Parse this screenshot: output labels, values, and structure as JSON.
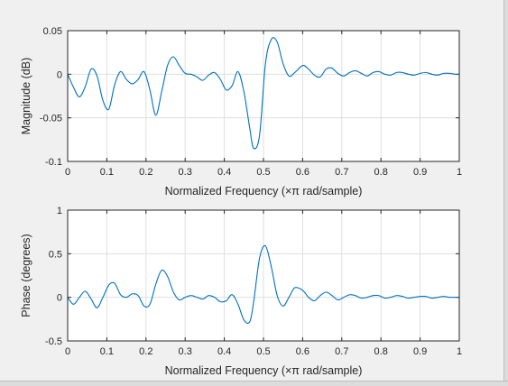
{
  "chart_data": [
    {
      "type": "line",
      "xlabel": "Normalized Frequency  (×π rad/sample)",
      "ylabel": "Magnitude (dB)",
      "xlim": [
        0,
        1
      ],
      "ylim": [
        -0.1,
        0.05
      ],
      "xticks": [
        "0",
        "0.1",
        "0.2",
        "0.3",
        "0.4",
        "0.5",
        "0.6",
        "0.7",
        "0.8",
        "0.9",
        "1"
      ],
      "yticks": [
        "-0.1",
        "-0.05",
        "0",
        "0.05"
      ],
      "grid": true,
      "line_color": "#0072bd",
      "series": [
        {
          "x": [
            0.0,
            0.015,
            0.03,
            0.045,
            0.06,
            0.075,
            0.09,
            0.105,
            0.12,
            0.135,
            0.15,
            0.165,
            0.18,
            0.195,
            0.21,
            0.225,
            0.24,
            0.255,
            0.27,
            0.285,
            0.3,
            0.315,
            0.33,
            0.345,
            0.36,
            0.375,
            0.39,
            0.405,
            0.42,
            0.435,
            0.45,
            0.465,
            0.475,
            0.49,
            0.505,
            0.52,
            0.535,
            0.55,
            0.565,
            0.58,
            0.6,
            0.615,
            0.63,
            0.645,
            0.66,
            0.675,
            0.69,
            0.705,
            0.72,
            0.735,
            0.75,
            0.765,
            0.78,
            0.795,
            0.81,
            0.825,
            0.84,
            0.855,
            0.87,
            0.885,
            0.9,
            0.915,
            0.93,
            0.945,
            0.96,
            0.975,
            0.99,
            1.0
          ],
          "values": [
            0.0,
            -0.015,
            -0.026,
            -0.014,
            0.006,
            -0.002,
            -0.03,
            -0.04,
            -0.012,
            0.003,
            -0.006,
            -0.011,
            -0.006,
            0.003,
            -0.018,
            -0.047,
            -0.02,
            0.01,
            0.02,
            0.01,
            0.001,
            0.0,
            -0.003,
            -0.007,
            -0.001,
            0.002,
            -0.006,
            -0.018,
            -0.013,
            0.003,
            -0.02,
            -0.062,
            -0.085,
            -0.07,
            0.012,
            0.04,
            0.037,
            0.012,
            -0.002,
            0.002,
            0.01,
            0.006,
            -0.001,
            -0.003,
            0.006,
            0.007,
            0.001,
            -0.002,
            0.002,
            0.004,
            0.001,
            -0.002,
            0.002,
            0.003,
            0.0,
            -0.001,
            0.002,
            0.002,
            0.0,
            -0.001,
            0.001,
            0.002,
            0.0,
            -0.001,
            0.001,
            0.001,
            0.0,
            0.0
          ]
        }
      ]
    },
    {
      "type": "line",
      "xlabel": "Normalized Frequency  (×π rad/sample)",
      "ylabel": "Phase (degrees)",
      "xlim": [
        0,
        1
      ],
      "ylim": [
        -0.5,
        1
      ],
      "xticks": [
        "0",
        "0.1",
        "0.2",
        "0.3",
        "0.4",
        "0.5",
        "0.6",
        "0.7",
        "0.8",
        "0.9",
        "1"
      ],
      "yticks": [
        "-0.5",
        "0",
        "0.5",
        "1"
      ],
      "grid": true,
      "line_color": "#0072bd",
      "series": [
        {
          "x": [
            0.0,
            0.015,
            0.03,
            0.045,
            0.06,
            0.075,
            0.09,
            0.105,
            0.12,
            0.135,
            0.15,
            0.165,
            0.18,
            0.195,
            0.21,
            0.225,
            0.24,
            0.255,
            0.27,
            0.285,
            0.3,
            0.315,
            0.33,
            0.345,
            0.36,
            0.375,
            0.39,
            0.405,
            0.42,
            0.435,
            0.45,
            0.465,
            0.475,
            0.49,
            0.505,
            0.52,
            0.535,
            0.55,
            0.565,
            0.58,
            0.6,
            0.615,
            0.63,
            0.645,
            0.66,
            0.675,
            0.69,
            0.705,
            0.72,
            0.735,
            0.75,
            0.765,
            0.78,
            0.795,
            0.81,
            0.825,
            0.84,
            0.855,
            0.87,
            0.885,
            0.9,
            0.915,
            0.93,
            0.945,
            0.96,
            0.975,
            0.99,
            1.0
          ],
          "values": [
            0.0,
            -0.08,
            0.0,
            0.07,
            -0.02,
            -0.12,
            0.0,
            0.14,
            0.16,
            0.03,
            0.0,
            0.04,
            0.02,
            -0.1,
            -0.08,
            0.15,
            0.31,
            0.24,
            0.06,
            -0.03,
            0.0,
            0.02,
            0.0,
            -0.02,
            0.02,
            0.0,
            -0.05,
            -0.04,
            0.03,
            -0.08,
            -0.26,
            -0.28,
            -0.05,
            0.45,
            0.59,
            0.35,
            0.02,
            -0.1,
            0.0,
            0.11,
            0.08,
            0.0,
            -0.04,
            0.02,
            0.06,
            0.02,
            -0.03,
            0.0,
            0.03,
            0.02,
            -0.01,
            0.0,
            0.02,
            0.02,
            -0.01,
            0.0,
            0.02,
            0.01,
            -0.01,
            0.0,
            0.01,
            0.01,
            -0.01,
            0.0,
            0.01,
            0.0,
            0.0,
            0.0
          ]
        }
      ]
    }
  ]
}
